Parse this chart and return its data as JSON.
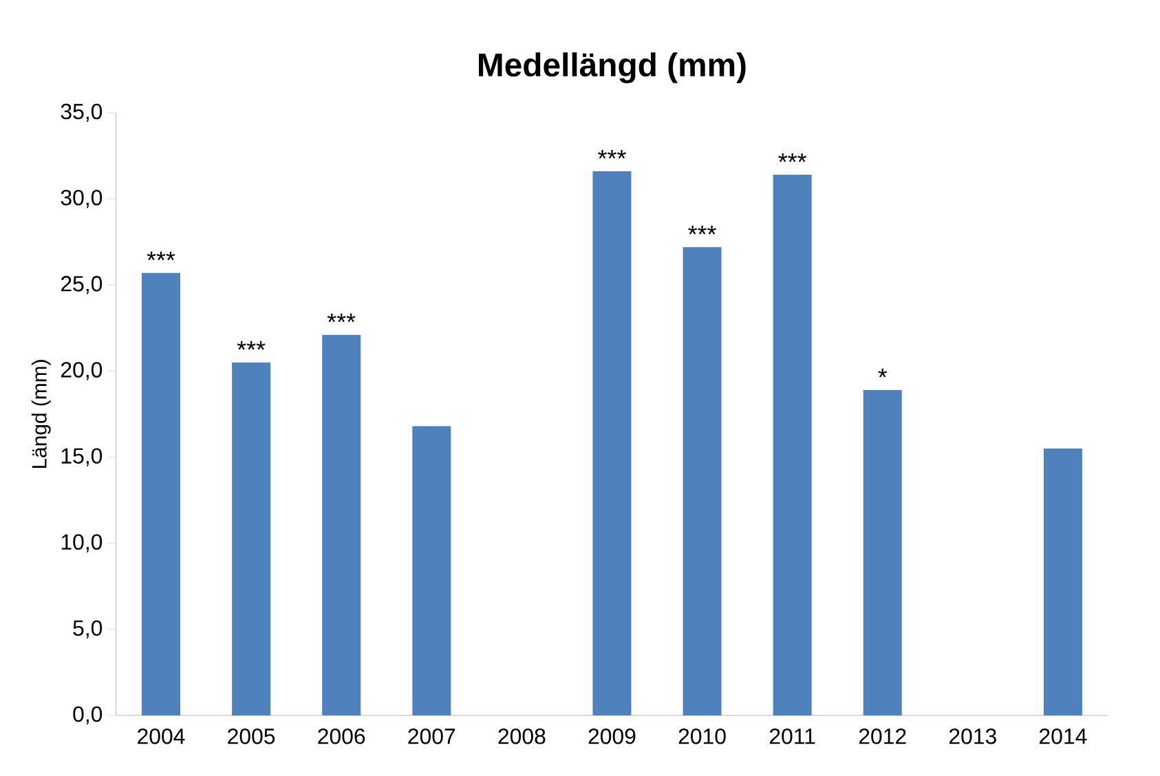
{
  "chart_data": {
    "type": "bar",
    "title": "Medellängd (mm)",
    "ylabel": "Längd (mm)",
    "categories": [
      "2004",
      "2005",
      "2006",
      "2007",
      "2008",
      "2009",
      "2010",
      "2011",
      "2012",
      "2013",
      "2014"
    ],
    "values": [
      25.7,
      20.5,
      22.1,
      16.8,
      null,
      31.6,
      27.2,
      31.4,
      18.9,
      null,
      15.5
    ],
    "color": "#4f81bd",
    "ylim": [
      0,
      35
    ],
    "yticks": [
      {
        "value": 0,
        "label": "0,0"
      },
      {
        "value": 5,
        "label": "5,0"
      },
      {
        "value": 10,
        "label": "10,0"
      },
      {
        "value": 15,
        "label": "15,0"
      },
      {
        "value": 20,
        "label": "20,0"
      },
      {
        "value": 25,
        "label": "25,0"
      },
      {
        "value": 30,
        "label": "30,0"
      },
      {
        "value": 35,
        "label": "35,0"
      }
    ],
    "annotations": [
      {
        "text": "***",
        "x": "2004",
        "y": 25.7
      },
      {
        "text": "***",
        "x": "2005",
        "y": 20.5
      },
      {
        "text": "***",
        "x": "2006",
        "y": 22.1
      },
      {
        "text": "***",
        "x": "2009",
        "y": 31.6
      },
      {
        "text": "***",
        "x": "2010",
        "y": 27.2
      },
      {
        "text": "***",
        "x": "2011",
        "y": 31.4
      },
      {
        "text": "*",
        "x": "2012",
        "y": 18.9
      }
    ]
  }
}
